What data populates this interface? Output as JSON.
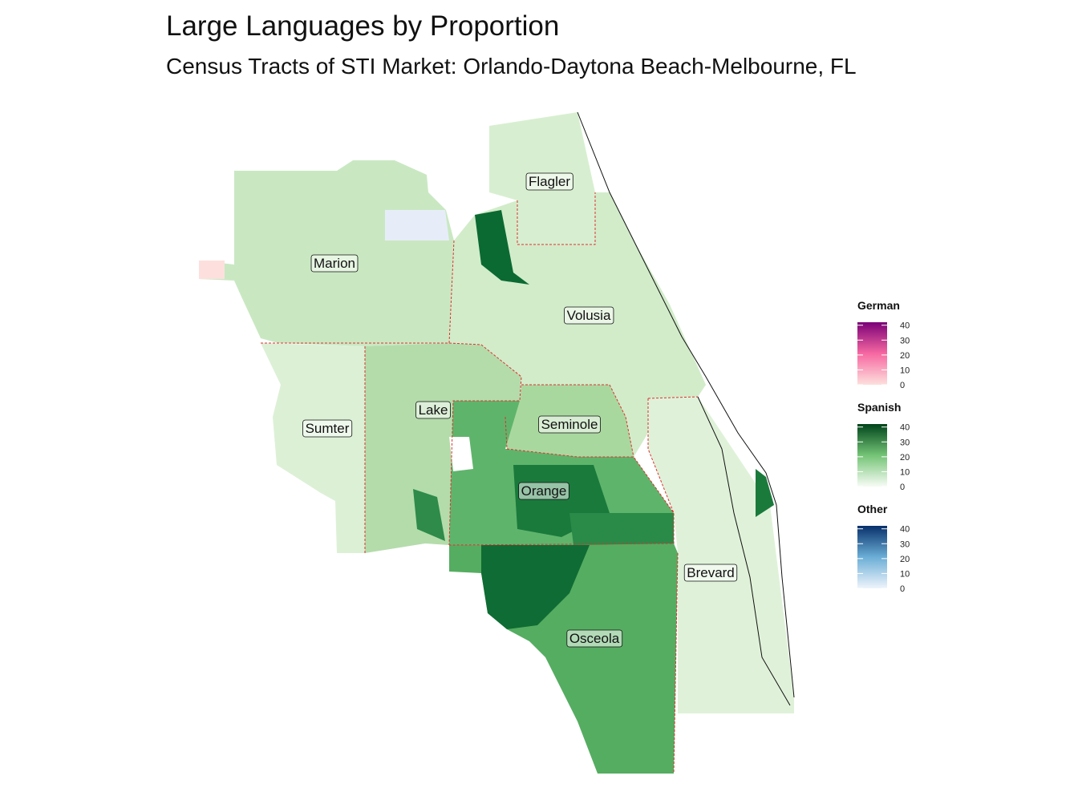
{
  "title": "Large Languages by Proportion",
  "subtitle": "Census Tracts of STI Market: Orlando-Daytona Beach-Melbourne, FL",
  "counties": [
    "Flagler",
    "Marion",
    "Volusia",
    "Lake",
    "Sumter",
    "Seminole",
    "Orange",
    "Brevard",
    "Osceola"
  ],
  "legends": [
    {
      "title": "German",
      "lim": [
        0,
        42
      ],
      "ticks": [
        0,
        10,
        20,
        30,
        40
      ],
      "colors": [
        "#fde0dd",
        "#f768a1",
        "#7a0177"
      ]
    },
    {
      "title": "Spanish",
      "lim": [
        0,
        42
      ],
      "ticks": [
        0,
        10,
        20,
        30,
        40
      ],
      "colors": [
        "#f7fcf5",
        "#74c476",
        "#00441b"
      ]
    },
    {
      "title": "Other",
      "lim": [
        0,
        42
      ],
      "ticks": [
        0,
        10,
        20,
        30,
        40
      ],
      "colors": [
        "#eef4fb",
        "#6baed6",
        "#08306b"
      ]
    }
  ]
}
